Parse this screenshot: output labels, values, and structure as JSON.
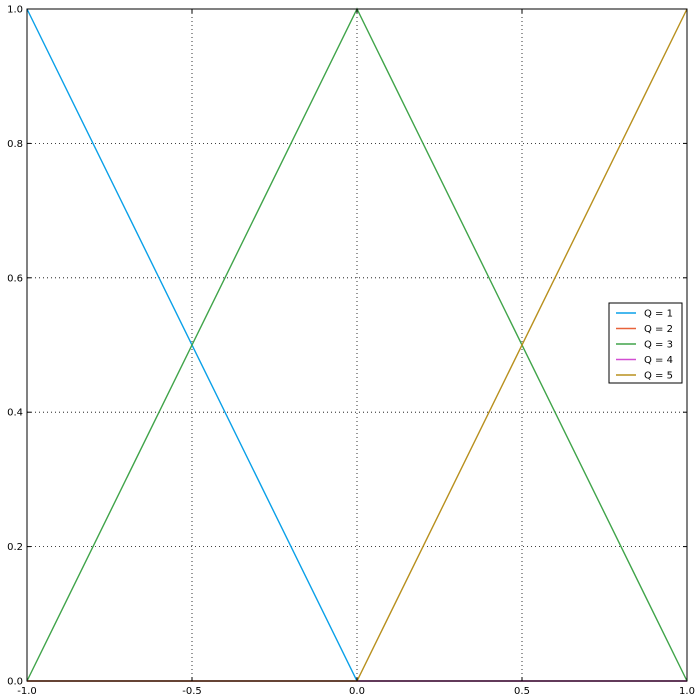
{
  "chart_data": {
    "type": "line",
    "title": "",
    "xlabel": "",
    "ylabel": "",
    "xlim": [
      -1.0,
      1.0
    ],
    "ylim": [
      0.0,
      1.0
    ],
    "x_ticks": [
      {
        "value": -1.0,
        "label": "-1.0"
      },
      {
        "value": -0.5,
        "label": "-0.5"
      },
      {
        "value": 0.0,
        "label": "0.0"
      },
      {
        "value": 0.5,
        "label": "0.5"
      },
      {
        "value": 1.0,
        "label": "1.0"
      }
    ],
    "y_ticks": [
      {
        "value": 0.0,
        "label": "0.0"
      },
      {
        "value": 0.2,
        "label": "0.2"
      },
      {
        "value": 0.4,
        "label": "0.4"
      },
      {
        "value": 0.6,
        "label": "0.6"
      },
      {
        "value": 0.8,
        "label": "0.8"
      },
      {
        "value": 1.0,
        "label": "1.0"
      }
    ],
    "grid": true,
    "legend_position": "center-right",
    "series": [
      {
        "name": "Q = 1",
        "color": "#0aa0e8",
        "points": [
          [
            -1.0,
            1.0
          ],
          [
            0.0,
            0.0
          ],
          [
            1.0,
            0.0
          ]
        ]
      },
      {
        "name": "Q = 2",
        "color": "#e8623a",
        "points": [
          [
            -1.0,
            0.0
          ],
          [
            1.0,
            0.0
          ]
        ]
      },
      {
        "name": "Q = 3",
        "color": "#40a44a",
        "points": [
          [
            -1.0,
            0.0
          ],
          [
            0.0,
            1.0
          ],
          [
            1.0,
            0.0
          ]
        ]
      },
      {
        "name": "Q = 4",
        "color": "#d24ed2",
        "points": [
          [
            -1.0,
            0.0
          ],
          [
            1.0,
            0.0
          ]
        ]
      },
      {
        "name": "Q = 5",
        "color": "#b8901e",
        "points": [
          [
            -1.0,
            0.0
          ],
          [
            0.0,
            0.0
          ],
          [
            1.0,
            1.0
          ]
        ]
      }
    ]
  }
}
